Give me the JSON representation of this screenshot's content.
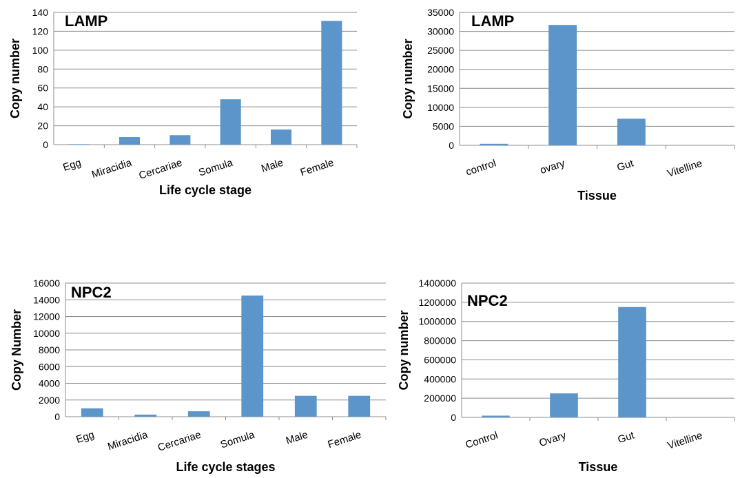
{
  "chart_data": [
    {
      "type": "bar",
      "title": "LAMP",
      "xlabel": "Life cycle stage",
      "ylabel": "Copy number",
      "categories": [
        "Egg",
        "Miracidia",
        "Cercariae",
        "Somula",
        "Male",
        "Female"
      ],
      "values": [
        0.5,
        8,
        10,
        48,
        16,
        131
      ],
      "ylim": [
        0,
        140
      ],
      "yticks": [
        "0",
        "20",
        "40",
        "60",
        "80",
        "100",
        "120",
        "140"
      ],
      "grid": true,
      "color": "#5b95c9"
    },
    {
      "type": "bar",
      "title": "LAMP",
      "xlabel": "Tissue",
      "ylabel": "Copy number",
      "categories": [
        "control",
        "ovary",
        "Gut",
        "Vitelline"
      ],
      "values": [
        400,
        31700,
        7000,
        0
      ],
      "ylim": [
        0,
        35000
      ],
      "yticks": [
        "0",
        "5000",
        "10000",
        "15000",
        "20000",
        "25000",
        "30000",
        "35000"
      ],
      "grid": true,
      "color": "#5b95c9"
    },
    {
      "type": "bar",
      "title": "NPC2",
      "xlabel": "Life cycle stages",
      "ylabel": "Copy Number",
      "categories": [
        "Egg",
        "Miracidia",
        "Cercariae",
        "Somula",
        "Male",
        "Female"
      ],
      "values": [
        1000,
        250,
        650,
        14500,
        2500,
        2500
      ],
      "ylim": [
        0,
        16000
      ],
      "yticks": [
        "0",
        "2000",
        "4000",
        "6000",
        "8000",
        "10000",
        "12000",
        "14000",
        "16000"
      ],
      "grid": true,
      "color": "#5b95c9"
    },
    {
      "type": "bar",
      "title": "NPC2",
      "xlabel": "Tissue",
      "ylabel": "Copy number",
      "categories": [
        "Control",
        "Ovary",
        "Gut",
        "Vitelline"
      ],
      "values": [
        18000,
        250000,
        1150000,
        0
      ],
      "ylim": [
        0,
        1400000
      ],
      "yticks": [
        "0",
        "200000",
        "400000",
        "600000",
        "800000",
        "1000000",
        "1200000",
        "1400000"
      ],
      "grid": true,
      "color": "#5b95c9"
    }
  ]
}
